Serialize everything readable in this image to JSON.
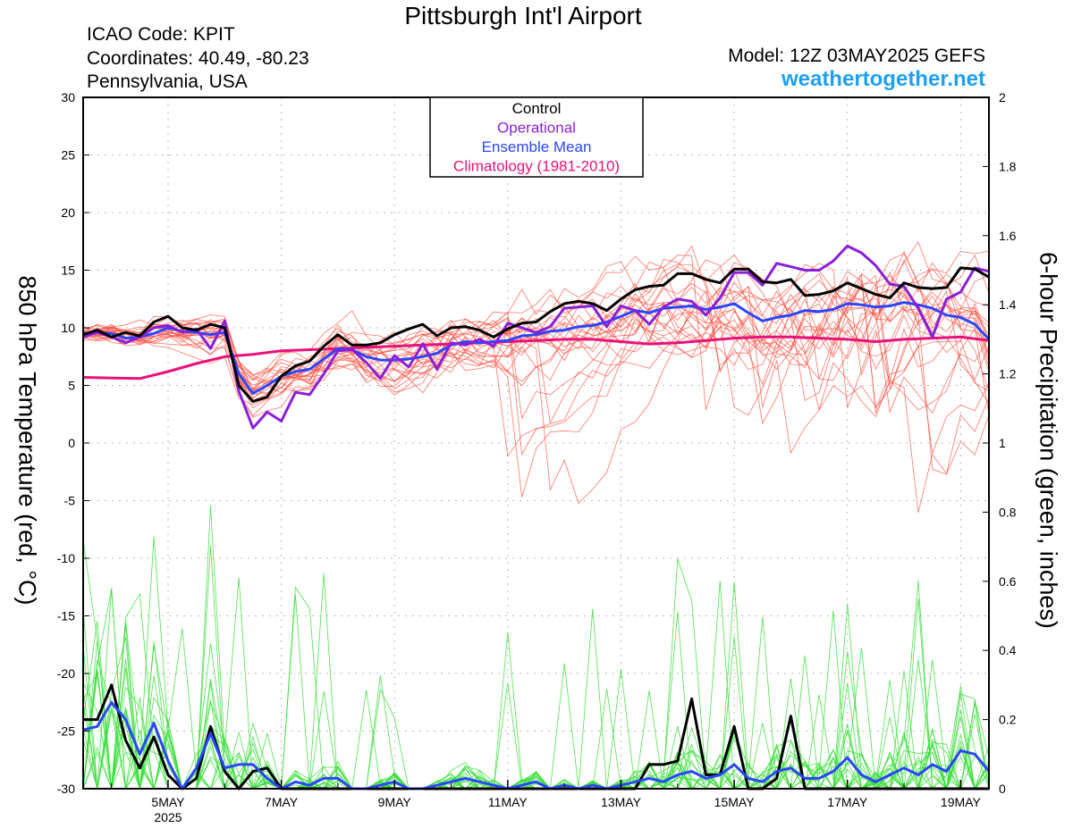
{
  "header": {
    "title": "Pittsburgh Int'l Airport",
    "icao": "ICAO Code: KPIT",
    "coordinates": "Coordinates: 40.49, -80.23",
    "region": "Pennsylvania, USA",
    "model": "Model: 12Z 03MAY2025 GEFS",
    "website": "weathertogether.net"
  },
  "colors": {
    "control": "#000000",
    "operational": "#8a1fd8",
    "ensemble_mean": "#2a46ff",
    "climatology": "#e8127a",
    "members_temp": "#ff4a3a",
    "members_precip": "#33dd33",
    "website": "#1ea0f0"
  },
  "chart_data": {
    "type": "line",
    "title": "Pittsburgh Int'l Airport",
    "ylabel": "850 hPa Temperature (red, °C)",
    "y2label": "6-hour Precipitation (green, inches)",
    "ylim": [
      -30,
      30
    ],
    "y2lim": [
      0,
      2
    ],
    "yticks": [
      30,
      25,
      20,
      15,
      10,
      5,
      0,
      -5,
      -10,
      -15,
      -20,
      -25,
      -30
    ],
    "y2ticks": [
      2,
      1.8,
      1.6,
      1.4,
      1.2,
      1,
      0.8,
      0.6,
      0.4,
      0.2,
      0
    ],
    "xlim_days": [
      3.5,
      19.5
    ],
    "x_ticks": [
      {
        "day": 5,
        "label": "5MAY",
        "sublabel": "2025"
      },
      {
        "day": 7,
        "label": "7MAY",
        "sublabel": ""
      },
      {
        "day": 9,
        "label": "9MAY",
        "sublabel": ""
      },
      {
        "day": 11,
        "label": "11MAY",
        "sublabel": ""
      },
      {
        "day": 13,
        "label": "13MAY",
        "sublabel": ""
      },
      {
        "day": 15,
        "label": "15MAY",
        "sublabel": ""
      },
      {
        "day": 17,
        "label": "17MAY",
        "sublabel": ""
      },
      {
        "day": 19,
        "label": "19MAY",
        "sublabel": ""
      }
    ],
    "grid": true,
    "legend": {
      "placement": "top-center",
      "entries": [
        "Control",
        "Operational",
        "Ensemble Mean",
        "Climatology (1981-2010)"
      ]
    },
    "series": [
      {
        "name": "Control",
        "axis": "temp",
        "x": [
          3.5,
          3.75,
          4,
          4.25,
          4.5,
          4.75,
          5,
          5.25,
          5.5,
          5.75,
          6,
          6.25,
          6.5,
          6.75,
          7,
          7.25,
          7.5,
          7.75,
          8,
          8.25,
          8.5,
          8.75,
          9,
          9.25,
          9.5,
          9.75,
          10,
          10.25,
          10.5,
          10.75,
          11,
          11.25,
          11.5,
          11.75,
          12,
          12.25,
          12.5,
          12.75,
          13,
          13.25,
          13.5,
          13.75,
          14,
          14.25,
          14.5,
          14.75,
          15,
          15.25,
          15.5,
          15.75,
          16,
          16.25,
          16.5,
          16.75,
          17,
          17.25,
          17.5,
          17.75,
          18,
          18.25,
          18.5,
          18.75,
          19,
          19.25,
          19.5
        ],
        "values": [
          9.4,
          9.8,
          9.2,
          9.6,
          9.3,
          10.5,
          11.0,
          10.0,
          9.8,
          10.3,
          10.0,
          5.0,
          3.6,
          4.0,
          5.8,
          6.7,
          7.1,
          8.4,
          9.4,
          8.5,
          8.5,
          8.7,
          9.4,
          9.9,
          10.3,
          9.3,
          10.0,
          10.1,
          9.8,
          9.2,
          9.9,
          10.4,
          10.5,
          11.4,
          12.1,
          12.3,
          12.1,
          11.5,
          12.5,
          13.3,
          13.6,
          13.7,
          14.7,
          14.7,
          14.2,
          13.9,
          15.1,
          15.1,
          14.0,
          13.9,
          14.2,
          12.8,
          12.9,
          13.2,
          13.9,
          13.4,
          12.9,
          12.6,
          13.9,
          13.5,
          13.4,
          13.5,
          15.2,
          15.1,
          14.4
        ]
      },
      {
        "name": "Operational",
        "axis": "temp",
        "x": [
          3.5,
          3.75,
          4,
          4.25,
          4.5,
          4.75,
          5,
          5.25,
          5.5,
          5.75,
          6,
          6.25,
          6.5,
          6.75,
          7,
          7.25,
          7.5,
          7.75,
          8,
          8.25,
          8.5,
          8.75,
          9,
          9.25,
          9.5,
          9.75,
          10,
          10.25,
          10.5,
          10.75,
          11,
          11.25,
          11.5,
          11.75,
          12,
          12.25,
          12.5,
          12.75,
          13,
          13.25,
          13.5,
          13.75,
          14,
          14.25,
          14.5,
          14.75,
          15,
          15.25,
          15.5,
          15.75,
          16,
          16.25,
          16.5,
          16.75,
          17,
          17.25,
          17.5,
          17.75,
          18,
          18.25,
          18.5,
          18.75,
          19,
          19.25,
          19.5
        ],
        "values": [
          9.2,
          9.6,
          9.2,
          8.7,
          9.2,
          10.0,
          10.2,
          9.6,
          9.9,
          8.2,
          10.6,
          4.5,
          1.3,
          2.7,
          1.9,
          4.4,
          4.2,
          6.0,
          8.0,
          8.1,
          7.0,
          5.6,
          7.6,
          6.6,
          8.6,
          6.4,
          8.7,
          8.5,
          9.0,
          8.4,
          10.4,
          10.0,
          9.6,
          10.1,
          11.7,
          11.8,
          11.9,
          10.1,
          11.9,
          11.5,
          10.3,
          11.8,
          12.5,
          12.3,
          11.1,
          12.6,
          14.8,
          14.8,
          13.7,
          15.6,
          15.3,
          15.0,
          15.0,
          15.8,
          17.1,
          16.5,
          15.4,
          13.8,
          13.6,
          11.7,
          9.2,
          12.5,
          13.1,
          15.2,
          14.9
        ]
      },
      {
        "name": "Ensemble Mean",
        "axis": "temp",
        "x": [
          3.5,
          3.75,
          4,
          4.25,
          4.5,
          4.75,
          5,
          5.25,
          5.5,
          5.75,
          6,
          6.25,
          6.5,
          6.75,
          7,
          7.25,
          7.5,
          7.75,
          8,
          8.25,
          8.5,
          8.75,
          9,
          9.25,
          9.5,
          9.75,
          10,
          10.25,
          10.5,
          10.75,
          11,
          11.25,
          11.5,
          11.75,
          12,
          12.25,
          12.5,
          12.75,
          13,
          13.25,
          13.5,
          13.75,
          14,
          14.25,
          14.5,
          14.75,
          15,
          15.25,
          15.5,
          15.75,
          16,
          16.25,
          16.5,
          16.75,
          17,
          17.25,
          17.5,
          17.75,
          18,
          18.25,
          18.5,
          18.75,
          19,
          19.25,
          19.5
        ],
        "values": [
          9.5,
          9.6,
          9.5,
          9.1,
          9.2,
          9.5,
          10.0,
          9.7,
          9.6,
          9.4,
          9.6,
          6.0,
          4.3,
          5.0,
          5.8,
          6.2,
          6.4,
          7.3,
          8.2,
          8.1,
          7.5,
          7.2,
          7.2,
          7.3,
          7.5,
          7.8,
          8.5,
          8.8,
          8.7,
          8.8,
          8.9,
          9.3,
          9.4,
          9.7,
          9.8,
          10.1,
          10.2,
          10.5,
          11.0,
          11.5,
          11.3,
          11.7,
          11.8,
          11.9,
          11.6,
          11.8,
          12.1,
          11.3,
          10.6,
          10.9,
          11.1,
          11.5,
          11.4,
          11.6,
          12.1,
          12.0,
          11.8,
          11.9,
          12.2,
          12.0,
          11.7,
          11.1,
          10.9,
          10.3,
          9.0
        ]
      },
      {
        "name": "Climatology (1981-2010)",
        "axis": "temp",
        "x": [
          3.5,
          4.5,
          5,
          5.5,
          6,
          6.5,
          7,
          7.5,
          8,
          8.5,
          9,
          9.5,
          10,
          10.5,
          11,
          11.5,
          12,
          12.5,
          13,
          13.5,
          14,
          14.5,
          15,
          15.5,
          16,
          16.5,
          17,
          17.5,
          18,
          18.5,
          19,
          19.5
        ],
        "values": [
          5.7,
          5.6,
          6.2,
          6.9,
          7.5,
          7.7,
          8.0,
          8.1,
          8.2,
          8.3,
          8.4,
          8.5,
          8.6,
          8.7,
          8.8,
          8.9,
          9.0,
          9.0,
          8.8,
          8.6,
          8.7,
          8.9,
          9.1,
          9.2,
          9.2,
          9.1,
          9.0,
          8.8,
          9.0,
          9.1,
          9.2,
          8.9
        ]
      },
      {
        "name": "Control precip",
        "axis": "precip",
        "x": [
          3.5,
          3.75,
          4,
          4.25,
          4.5,
          4.75,
          5,
          5.25,
          5.5,
          5.75,
          6,
          6.25,
          6.5,
          6.75,
          7,
          7.25,
          7.5,
          7.75,
          8,
          8.25,
          8.5,
          8.75,
          9,
          9.25,
          9.5,
          9.75,
          10,
          10.25,
          10.5,
          10.75,
          11,
          11.25,
          11.5,
          11.75,
          12,
          12.25,
          12.5,
          12.75,
          13,
          13.25,
          13.5,
          13.75,
          14,
          14.25,
          14.5,
          14.75,
          15,
          15.25,
          15.5,
          15.75,
          16,
          16.25,
          16.5,
          16.75,
          17,
          17.25,
          17.5,
          17.75,
          18,
          18.25,
          18.5,
          18.75,
          19,
          19.25,
          19.5
        ],
        "values": [
          0.2,
          0.2,
          0.3,
          0.14,
          0.06,
          0.15,
          0.04,
          0.0,
          0.03,
          0.18,
          0.05,
          0.0,
          0.05,
          0.06,
          0.0,
          0.0,
          0.0,
          0.0,
          0.0,
          0.0,
          0.0,
          0.0,
          0.0,
          0.0,
          0.0,
          0.0,
          0.0,
          0.0,
          0.0,
          0.0,
          0.0,
          0.0,
          0.0,
          0.0,
          0.0,
          0.0,
          0.0,
          0.0,
          0.0,
          0.0,
          0.07,
          0.07,
          0.08,
          0.26,
          0.04,
          0.04,
          0.18,
          0.0,
          0.0,
          0.03,
          0.21,
          0.0,
          0.0,
          0.0,
          0.0,
          0.0,
          0.0,
          0.0,
          0.0,
          0.0,
          0.0,
          0.0,
          0.0,
          0.0,
          0.0
        ]
      },
      {
        "name": "Ensemble Mean precip",
        "axis": "precip",
        "x": [
          3.5,
          3.75,
          4,
          4.25,
          4.5,
          4.75,
          5,
          5.25,
          5.5,
          5.75,
          6,
          6.25,
          6.5,
          6.75,
          7,
          7.25,
          7.5,
          7.75,
          8,
          8.25,
          8.5,
          8.75,
          9,
          9.25,
          9.5,
          9.75,
          10,
          10.25,
          10.5,
          10.75,
          11,
          11.25,
          11.5,
          11.75,
          12,
          12.25,
          12.5,
          12.75,
          13,
          13.25,
          13.5,
          13.75,
          14,
          14.25,
          14.5,
          14.75,
          15,
          15.25,
          15.5,
          15.75,
          16,
          16.25,
          16.5,
          16.75,
          17,
          17.25,
          17.5,
          17.75,
          18,
          18.25,
          18.5,
          18.75,
          19,
          19.25,
          19.5
        ],
        "values": [
          0.17,
          0.18,
          0.25,
          0.2,
          0.1,
          0.19,
          0.08,
          0.0,
          0.06,
          0.16,
          0.06,
          0.07,
          0.07,
          0.03,
          0.0,
          0.02,
          0.01,
          0.03,
          0.03,
          0.0,
          0.0,
          0.01,
          0.02,
          0.0,
          0.0,
          0.01,
          0.02,
          0.03,
          0.02,
          0.01,
          0.0,
          0.01,
          0.02,
          0.0,
          0.01,
          0.0,
          0.01,
          0.0,
          0.01,
          0.02,
          0.03,
          0.02,
          0.04,
          0.05,
          0.03,
          0.04,
          0.07,
          0.03,
          0.02,
          0.05,
          0.06,
          0.03,
          0.03,
          0.05,
          0.09,
          0.04,
          0.02,
          0.04,
          0.06,
          0.04,
          0.07,
          0.05,
          0.11,
          0.1,
          0.05
        ]
      }
    ]
  }
}
